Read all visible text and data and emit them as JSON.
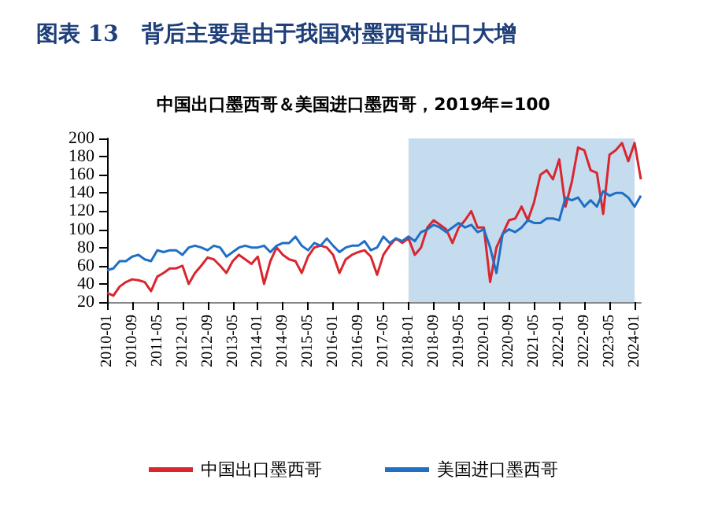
{
  "chart_data": {
    "type": "line",
    "title": "图表 13   背后主要是由于我国对墨西哥出口大增",
    "subtitle": "中国出口墨西哥＆美国进口墨西哥，2019年=100",
    "categories": [
      "2010-01",
      null,
      null,
      null,
      "2010-09",
      null,
      null,
      null,
      "2011-05",
      null,
      null,
      null,
      "2012-01",
      null,
      null,
      null,
      "2012-09",
      null,
      null,
      null,
      "2013-05",
      null,
      null,
      null,
      "2014-01",
      null,
      null,
      null,
      "2014-09",
      null,
      null,
      null,
      "2015-05",
      null,
      null,
      null,
      "2016-01",
      null,
      null,
      null,
      "2016-09",
      null,
      null,
      null,
      "2017-05",
      null,
      null,
      null,
      "2018-01",
      null,
      null,
      null,
      "2018-09",
      null,
      null,
      null,
      "2019-05",
      null,
      null,
      null,
      "2020-01",
      null,
      null,
      null,
      "2020-09",
      null,
      null,
      null,
      "2021-05",
      null,
      null,
      null,
      "2022-01",
      null,
      null,
      null,
      "2022-09",
      null,
      null,
      null,
      "2023-05",
      null,
      null,
      null,
      "2024-01",
      null
    ],
    "series": [
      {
        "name": "中国出口墨西哥",
        "color": "#d9262f",
        "values": [
          30,
          27,
          37,
          42,
          45,
          44,
          42,
          32,
          48,
          52,
          57,
          57,
          60,
          40,
          52,
          60,
          69,
          67,
          60,
          52,
          65,
          72,
          67,
          62,
          70,
          40,
          65,
          80,
          72,
          67,
          65,
          52,
          70,
          80,
          82,
          80,
          72,
          52,
          67,
          72,
          75,
          77,
          70,
          50,
          72,
          82,
          90,
          85,
          90,
          72,
          80,
          102,
          110,
          105,
          100,
          85,
          102,
          110,
          120,
          102,
          102,
          42,
          80,
          95,
          110,
          112,
          125,
          110,
          130,
          160,
          165,
          155,
          177,
          125,
          152,
          190,
          187,
          165,
          162,
          117,
          182,
          187,
          195,
          175,
          195,
          155
        ]
      },
      {
        "name": "美国进口墨西哥",
        "color": "#1f6fc5",
        "values": [
          55,
          57,
          65,
          65,
          70,
          72,
          67,
          65,
          77,
          75,
          77,
          77,
          72,
          80,
          82,
          80,
          77,
          82,
          80,
          70,
          75,
          80,
          82,
          80,
          80,
          82,
          75,
          82,
          85,
          85,
          92,
          82,
          77,
          85,
          82,
          90,
          82,
          75,
          80,
          82,
          82,
          87,
          77,
          80,
          92,
          85,
          90,
          87,
          92,
          87,
          97,
          100,
          105,
          102,
          97,
          102,
          107,
          102,
          105,
          97,
          100,
          80,
          52,
          95,
          100,
          97,
          102,
          110,
          107,
          107,
          112,
          112,
          110,
          135,
          132,
          135,
          125,
          132,
          125,
          142,
          137,
          140,
          140,
          135,
          125,
          137
        ]
      }
    ],
    "ylim": [
      20,
      200
    ],
    "yticks": [
      20,
      40,
      60,
      80,
      100,
      120,
      140,
      160,
      180,
      200
    ],
    "bands": [
      {
        "axis": "x",
        "from": "2018-01",
        "to": "2024-01",
        "color": "#c5dcef"
      }
    ],
    "legend": "bottom"
  }
}
